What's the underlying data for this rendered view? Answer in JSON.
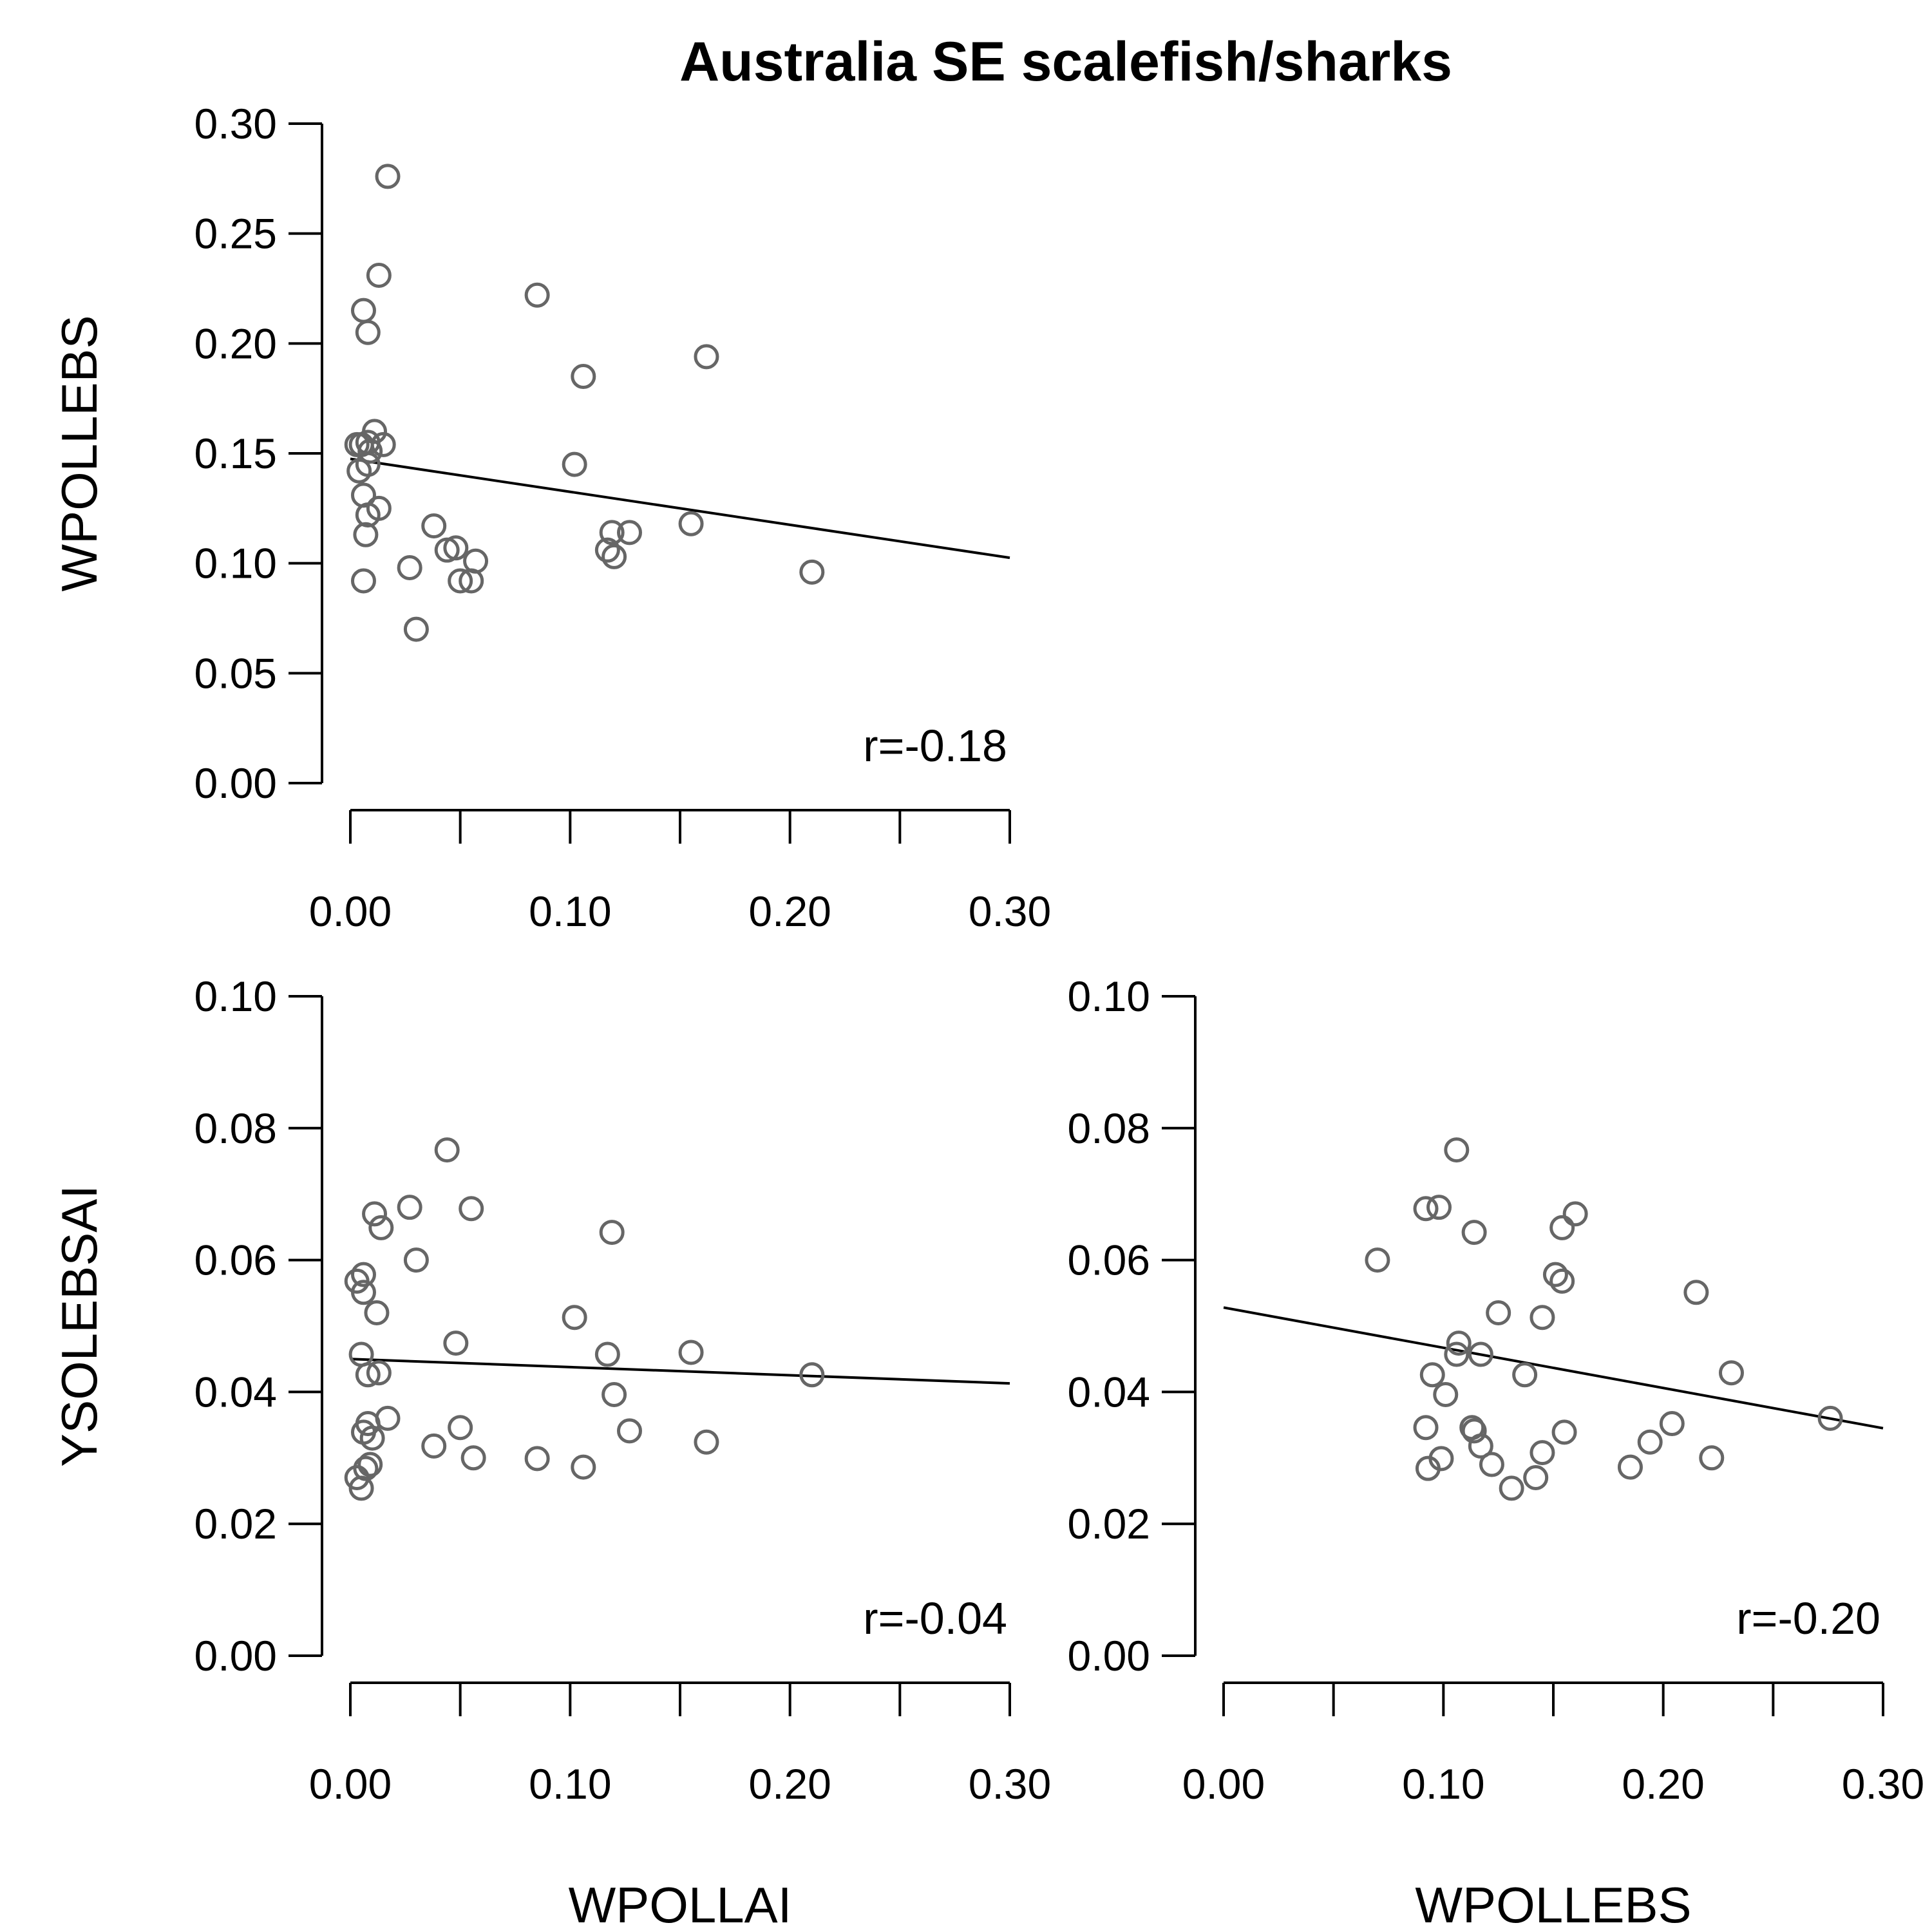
{
  "chart_data": {
    "title": "Australia SE scalefish/sharks",
    "panels": [
      {
        "id": "p1",
        "type": "scatter",
        "xlabel": "",
        "ylabel": "WPOLLEBS",
        "xlim": [
          0,
          0.3
        ],
        "ylim": [
          0,
          0.3
        ],
        "x_ticks": [
          0,
          0.05,
          0.1,
          0.15,
          0.2,
          0.25,
          0.3
        ],
        "x_tick_labels": [
          "0.00",
          "",
          "0.10",
          "",
          "0.20",
          "",
          "0.30"
        ],
        "y_ticks": [
          0,
          0.05,
          0.1,
          0.15,
          0.2,
          0.25,
          0.3
        ],
        "y_tick_labels": [
          "0.00",
          "0.05",
          "0.10",
          "0.15",
          "0.20",
          "0.25",
          "0.30"
        ],
        "r_label": "r=-0.18",
        "fit": {
          "x0": 0,
          "y0": 0.1475,
          "x1": 0.3,
          "y1": 0.1025
        },
        "x": [
          0.017,
          0.013,
          0.006,
          0.008,
          0.085,
          0.106,
          0.162,
          0.011,
          0.015,
          0.005,
          0.008,
          0.009,
          0.003,
          0.004,
          0.008,
          0.006,
          0.013,
          0.008,
          0.007,
          0.102,
          0.038,
          0.044,
          0.048,
          0.057,
          0.119,
          0.127,
          0.155,
          0.117,
          0.12,
          0.027,
          0.05,
          0.055,
          0.006,
          0.21,
          0.03
        ],
        "y": [
          0.276,
          0.231,
          0.215,
          0.205,
          0.222,
          0.185,
          0.194,
          0.16,
          0.154,
          0.154,
          0.155,
          0.151,
          0.154,
          0.142,
          0.145,
          0.131,
          0.125,
          0.122,
          0.113,
          0.145,
          0.117,
          0.106,
          0.107,
          0.101,
          0.114,
          0.114,
          0.118,
          0.106,
          0.103,
          0.098,
          0.092,
          0.092,
          0.092,
          0.096,
          0.07
        ]
      },
      {
        "id": "p2",
        "type": "scatter",
        "xlabel": "WPOLLAI",
        "ylabel": "YSOLEBSAI",
        "xlim": [
          0,
          0.3
        ],
        "ylim": [
          0,
          0.1
        ],
        "x_ticks": [
          0,
          0.05,
          0.1,
          0.15,
          0.2,
          0.25,
          0.3
        ],
        "x_tick_labels": [
          "0.00",
          "",
          "0.10",
          "",
          "0.20",
          "",
          "0.30"
        ],
        "y_ticks": [
          0,
          0.02,
          0.04,
          0.06,
          0.08,
          0.1
        ],
        "y_tick_labels": [
          "0.00",
          "0.02",
          "0.04",
          "0.06",
          "0.08",
          "0.10"
        ],
        "r_label": "r=-0.04",
        "fit": {
          "x0": 0,
          "y0": 0.045,
          "x1": 0.3,
          "y1": 0.0413
        },
        "x": [
          0.044,
          0.027,
          0.055,
          0.011,
          0.014,
          0.119,
          0.03,
          0.006,
          0.003,
          0.006,
          0.012,
          0.102,
          0.048,
          0.005,
          0.117,
          0.155,
          0.008,
          0.013,
          0.21,
          0.12,
          0.017,
          0.05,
          0.127,
          0.008,
          0.006,
          0.01,
          0.038,
          0.162,
          0.056,
          0.085,
          0.009,
          0.106,
          0.007,
          0.003,
          0.005
        ],
        "y": [
          0.0767,
          0.068,
          0.0678,
          0.067,
          0.0649,
          0.0642,
          0.06,
          0.0578,
          0.0568,
          0.0551,
          0.052,
          0.0513,
          0.0474,
          0.0457,
          0.0457,
          0.046,
          0.0426,
          0.0429,
          0.0426,
          0.0396,
          0.036,
          0.0346,
          0.0341,
          0.0352,
          0.0339,
          0.033,
          0.0318,
          0.0324,
          0.03,
          0.0299,
          0.029,
          0.0286,
          0.0284,
          0.027,
          0.0254
        ]
      },
      {
        "id": "p3",
        "type": "scatter",
        "xlabel": "WPOLLEBS",
        "ylabel": "",
        "xlim": [
          0,
          0.3
        ],
        "ylim": [
          0,
          0.1
        ],
        "x_ticks": [
          0,
          0.05,
          0.1,
          0.15,
          0.2,
          0.25,
          0.3
        ],
        "x_tick_labels": [
          "0.00",
          "",
          "0.10",
          "",
          "0.20",
          "",
          "0.30"
        ],
        "y_ticks": [
          0,
          0.02,
          0.04,
          0.06,
          0.08,
          0.1
        ],
        "y_tick_labels": [
          "0.00",
          "0.02",
          "0.04",
          "0.06",
          "0.08",
          "0.10"
        ],
        "r_label": "r=-0.20",
        "fit": {
          "x0": 0,
          "y0": 0.0528,
          "x1": 0.3,
          "y1": 0.0345
        },
        "x": [
          0.106,
          0.092,
          0.098,
          0.16,
          0.154,
          0.114,
          0.07,
          0.151,
          0.154,
          0.215,
          0.125,
          0.145,
          0.107,
          0.117,
          0.106,
          0.231,
          0.095,
          0.101,
          0.137,
          0.276,
          0.113,
          0.204,
          0.155,
          0.114,
          0.092,
          0.194,
          0.117,
          0.145,
          0.222,
          0.099,
          0.122,
          0.185,
          0.093,
          0.142,
          0.131
        ],
        "y": [
          0.0767,
          0.0678,
          0.068,
          0.067,
          0.0649,
          0.0642,
          0.06,
          0.0578,
          0.0568,
          0.0551,
          0.052,
          0.0513,
          0.0474,
          0.0457,
          0.0457,
          0.0429,
          0.0426,
          0.0396,
          0.0426,
          0.036,
          0.0346,
          0.0352,
          0.0339,
          0.0341,
          0.0346,
          0.0324,
          0.0318,
          0.0308,
          0.03,
          0.0299,
          0.029,
          0.0286,
          0.0284,
          0.027,
          0.0254
        ]
      }
    ]
  }
}
